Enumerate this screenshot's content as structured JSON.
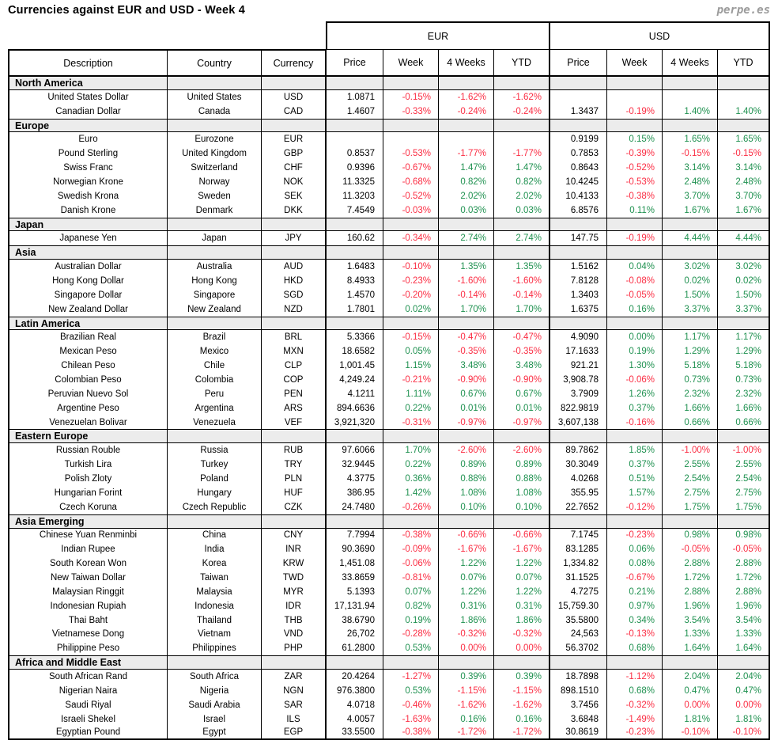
{
  "header": {
    "title": "Currencies against EUR and USD - Week 4",
    "brand": "perpe.es"
  },
  "table": {
    "group_headers": [
      "EUR",
      "USD"
    ],
    "columns": [
      "Description",
      "Country",
      "Currency",
      "Price",
      "Week",
      "4 Weeks",
      "YTD",
      "Price",
      "Week",
      "4 Weeks",
      "YTD"
    ],
    "colors": {
      "positive": "#1f9150",
      "negative": "#fb2d43",
      "section_bg": "#ececec",
      "border": "#000000",
      "brand_gray": "#9b9b9b"
    },
    "red_zero_overrides": {
      "PHP": [
        5,
        6
      ],
      "SAR": [
        9,
        10
      ]
    },
    "sections": [
      {
        "name": "North America",
        "rows": [
          [
            "United States Dollar",
            "United States",
            "USD",
            "1.0871",
            "-0.15%",
            "-1.62%",
            "-1.62%",
            "",
            "",
            "",
            ""
          ],
          [
            "Canadian Dollar",
            "Canada",
            "CAD",
            "1.4607",
            "-0.33%",
            "-0.24%",
            "-0.24%",
            "1.3437",
            "-0.19%",
            "1.40%",
            "1.40%"
          ]
        ]
      },
      {
        "name": "Europe",
        "rows": [
          [
            "Euro",
            "Eurozone",
            "EUR",
            "",
            "",
            "",
            "",
            "0.9199",
            "0.15%",
            "1.65%",
            "1.65%"
          ],
          [
            "Pound Sterling",
            "United Kingdom",
            "GBP",
            "0.8537",
            "-0.53%",
            "-1.77%",
            "-1.77%",
            "0.7853",
            "-0.39%",
            "-0.15%",
            "-0.15%"
          ],
          [
            "Swiss Franc",
            "Switzerland",
            "CHF",
            "0.9396",
            "-0.67%",
            "1.47%",
            "1.47%",
            "0.8643",
            "-0.52%",
            "3.14%",
            "3.14%"
          ],
          [
            "Norwegian Krone",
            "Norway",
            "NOK",
            "11.3325",
            "-0.68%",
            "0.82%",
            "0.82%",
            "10.4245",
            "-0.53%",
            "2.48%",
            "2.48%"
          ],
          [
            "Swedish Krona",
            "Sweden",
            "SEK",
            "11.3203",
            "-0.52%",
            "2.02%",
            "2.02%",
            "10.4133",
            "-0.38%",
            "3.70%",
            "3.70%"
          ],
          [
            "Danish Krone",
            "Denmark",
            "DKK",
            "7.4549",
            "-0.03%",
            "0.03%",
            "0.03%",
            "6.8576",
            "0.11%",
            "1.67%",
            "1.67%"
          ]
        ]
      },
      {
        "name": "Japan",
        "rows": [
          [
            "Japanese Yen",
            "Japan",
            "JPY",
            "160.62",
            "-0.34%",
            "2.74%",
            "2.74%",
            "147.75",
            "-0.19%",
            "4.44%",
            "4.44%"
          ]
        ]
      },
      {
        "name": "Asia",
        "rows": [
          [
            "Australian Dollar",
            "Australia",
            "AUD",
            "1.6483",
            "-0.10%",
            "1.35%",
            "1.35%",
            "1.5162",
            "0.04%",
            "3.02%",
            "3.02%"
          ],
          [
            "Hong Kong Dollar",
            "Hong Kong",
            "HKD",
            "8.4933",
            "-0.23%",
            "-1.60%",
            "-1.60%",
            "7.8128",
            "-0.08%",
            "0.02%",
            "0.02%"
          ],
          [
            "Singapore Dollar",
            "Singapore",
            "SGD",
            "1.4570",
            "-0.20%",
            "-0.14%",
            "-0.14%",
            "1.3403",
            "-0.05%",
            "1.50%",
            "1.50%"
          ],
          [
            "New Zealand Dollar",
            "New Zealand",
            "NZD",
            "1.7801",
            "0.02%",
            "1.70%",
            "1.70%",
            "1.6375",
            "0.16%",
            "3.37%",
            "3.37%"
          ]
        ]
      },
      {
        "name": "Latin America",
        "rows": [
          [
            "Brazilian Real",
            "Brazil",
            "BRL",
            "5.3366",
            "-0.15%",
            "-0.47%",
            "-0.47%",
            "4.9090",
            "0.00%",
            "1.17%",
            "1.17%"
          ],
          [
            "Mexican Peso",
            "Mexico",
            "MXN",
            "18.6582",
            "0.05%",
            "-0.35%",
            "-0.35%",
            "17.1633",
            "0.19%",
            "1.29%",
            "1.29%"
          ],
          [
            "Chilean Peso",
            "Chile",
            "CLP",
            "1,001.45",
            "1.15%",
            "3.48%",
            "3.48%",
            "921.21",
            "1.30%",
            "5.18%",
            "5.18%"
          ],
          [
            "Colombian Peso",
            "Colombia",
            "COP",
            "4,249.24",
            "-0.21%",
            "-0.90%",
            "-0.90%",
            "3,908.78",
            "-0.06%",
            "0.73%",
            "0.73%"
          ],
          [
            "Peruvian Nuevo Sol",
            "Peru",
            "PEN",
            "4.1211",
            "1.11%",
            "0.67%",
            "0.67%",
            "3.7909",
            "1.26%",
            "2.32%",
            "2.32%"
          ],
          [
            "Argentine Peso",
            "Argentina",
            "ARS",
            "894.6636",
            "0.22%",
            "0.01%",
            "0.01%",
            "822.9819",
            "0.37%",
            "1.66%",
            "1.66%"
          ],
          [
            "Venezuelan Bolivar",
            "Venezuela",
            "VEF",
            "3,921,320",
            "-0.31%",
            "-0.97%",
            "-0.97%",
            "3,607,138",
            "-0.16%",
            "0.66%",
            "0.66%"
          ]
        ]
      },
      {
        "name": "Eastern Europe",
        "rows": [
          [
            "Russian Rouble",
            "Russia",
            "RUB",
            "97.6066",
            "1.70%",
            "-2.60%",
            "-2.60%",
            "89.7862",
            "1.85%",
            "-1.00%",
            "-1.00%"
          ],
          [
            "Turkish Lira",
            "Turkey",
            "TRY",
            "32.9445",
            "0.22%",
            "0.89%",
            "0.89%",
            "30.3049",
            "0.37%",
            "2.55%",
            "2.55%"
          ],
          [
            "Polish Zloty",
            "Poland",
            "PLN",
            "4.3775",
            "0.36%",
            "0.88%",
            "0.88%",
            "4.0268",
            "0.51%",
            "2.54%",
            "2.54%"
          ],
          [
            "Hungarian Forint",
            "Hungary",
            "HUF",
            "386.95",
            "1.42%",
            "1.08%",
            "1.08%",
            "355.95",
            "1.57%",
            "2.75%",
            "2.75%"
          ],
          [
            "Czech Koruna",
            "Czech Republic",
            "CZK",
            "24.7480",
            "-0.26%",
            "0.10%",
            "0.10%",
            "22.7652",
            "-0.12%",
            "1.75%",
            "1.75%"
          ]
        ]
      },
      {
        "name": "Asia Emerging",
        "rows": [
          [
            "Chinese Yuan Renminbi",
            "China",
            "CNY",
            "7.7994",
            "-0.38%",
            "-0.66%",
            "-0.66%",
            "7.1745",
            "-0.23%",
            "0.98%",
            "0.98%"
          ],
          [
            "Indian Rupee",
            "India",
            "INR",
            "90.3690",
            "-0.09%",
            "-1.67%",
            "-1.67%",
            "83.1285",
            "0.06%",
            "-0.05%",
            "-0.05%"
          ],
          [
            "South Korean Won",
            "Korea",
            "KRW",
            "1,451.08",
            "-0.06%",
            "1.22%",
            "1.22%",
            "1,334.82",
            "0.08%",
            "2.88%",
            "2.88%"
          ],
          [
            "New Taiwan Dollar",
            "Taiwan",
            "TWD",
            "33.8659",
            "-0.81%",
            "0.07%",
            "0.07%",
            "31.1525",
            "-0.67%",
            "1.72%",
            "1.72%"
          ],
          [
            "Malaysian Ringgit",
            "Malaysia",
            "MYR",
            "5.1393",
            "0.07%",
            "1.22%",
            "1.22%",
            "4.7275",
            "0.21%",
            "2.88%",
            "2.88%"
          ],
          [
            "Indonesian Rupiah",
            "Indonesia",
            "IDR",
            "17,131.94",
            "0.82%",
            "0.31%",
            "0.31%",
            "15,759.30",
            "0.97%",
            "1.96%",
            "1.96%"
          ],
          [
            "Thai Baht",
            "Thailand",
            "THB",
            "38.6790",
            "0.19%",
            "1.86%",
            "1.86%",
            "35.5800",
            "0.34%",
            "3.54%",
            "3.54%"
          ],
          [
            "Vietnamese Dong",
            "Vietnam",
            "VND",
            "26,702",
            "-0.28%",
            "-0.32%",
            "-0.32%",
            "24,563",
            "-0.13%",
            "1.33%",
            "1.33%"
          ],
          [
            "Philippine Peso",
            "Philippines",
            "PHP",
            "61.2800",
            "0.53%",
            "0.00%",
            "0.00%",
            "56.3702",
            "0.68%",
            "1.64%",
            "1.64%"
          ]
        ]
      },
      {
        "name": "Africa and Middle East",
        "rows": [
          [
            "South African Rand",
            "South Africa",
            "ZAR",
            "20.4264",
            "-1.27%",
            "0.39%",
            "0.39%",
            "18.7898",
            "-1.12%",
            "2.04%",
            "2.04%"
          ],
          [
            "Nigerian Naira",
            "Nigeria",
            "NGN",
            "976.3800",
            "0.53%",
            "-1.15%",
            "-1.15%",
            "898.1510",
            "0.68%",
            "0.47%",
            "0.47%"
          ],
          [
            "Saudi Riyal",
            "Saudi Arabia",
            "SAR",
            "4.0718",
            "-0.46%",
            "-1.62%",
            "-1.62%",
            "3.7456",
            "-0.32%",
            "0.00%",
            "0.00%"
          ],
          [
            "Israeli Shekel",
            "Israel",
            "ILS",
            "4.0057",
            "-1.63%",
            "0.16%",
            "0.16%",
            "3.6848",
            "-1.49%",
            "1.81%",
            "1.81%"
          ],
          [
            "Egyptian Pound",
            "Egypt",
            "EGP",
            "33.5500",
            "-0.38%",
            "-1.72%",
            "-1.72%",
            "30.8619",
            "-0.23%",
            "-0.10%",
            "-0.10%"
          ]
        ]
      }
    ]
  }
}
